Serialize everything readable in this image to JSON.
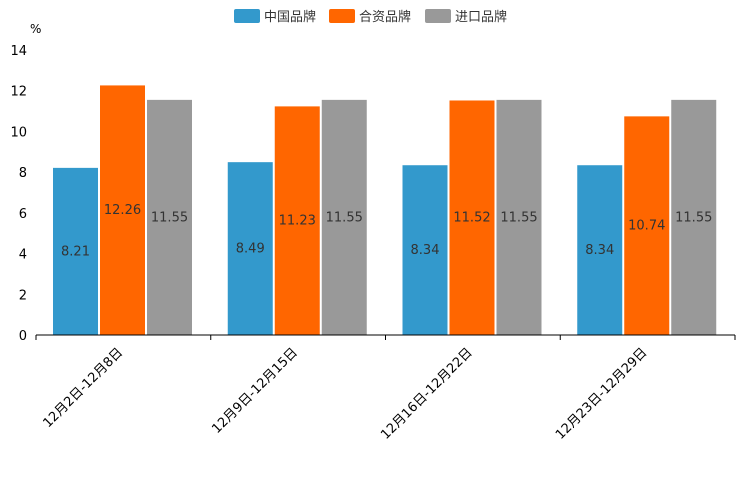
{
  "chart_data": {
    "type": "bar",
    "unit_label": "%",
    "categories": [
      "12月2日-12月8日",
      "12月9日-12月15日",
      "12月16日-12月22日",
      "12月23日-12月29日"
    ],
    "series": [
      {
        "name": "中国品牌",
        "color": "#3399CC",
        "values": [
          8.21,
          8.49,
          8.34,
          8.34
        ]
      },
      {
        "name": "合资品牌",
        "color": "#FF6600",
        "values": [
          12.26,
          11.23,
          11.52,
          10.74
        ]
      },
      {
        "name": "进口品牌",
        "color": "#999999",
        "values": [
          11.55,
          11.55,
          11.55,
          11.55
        ]
      }
    ],
    "ylim": [
      0,
      14
    ],
    "yticks": [
      0,
      2,
      4,
      6,
      8,
      10,
      12,
      14
    ],
    "legend_position": "top-center",
    "grid": false
  }
}
